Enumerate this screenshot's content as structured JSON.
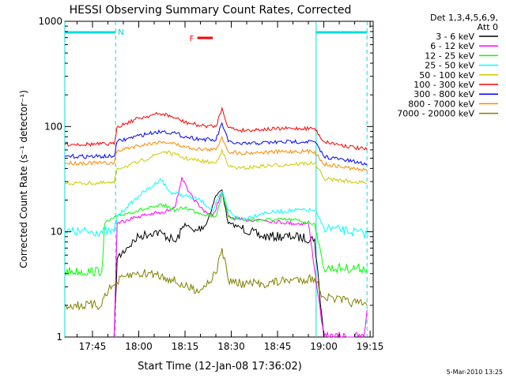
{
  "chart_data": {
    "type": "line",
    "title": "HESSI Observing Summary Count Rates, Corrected",
    "xlabel": "Start Time (12-Jan-08 17:36:02)",
    "ylabel": "Corrected Count Rate (s⁻¹ detector⁻¹)",
    "y_scale": "log",
    "xlim": [
      "17:36:02",
      "19:16:00"
    ],
    "ylim": [
      1,
      1000
    ],
    "x_ticks": [
      "17:45",
      "18:00",
      "18:15",
      "18:30",
      "18:45",
      "19:00",
      "19:15"
    ],
    "y_ticks": [
      "1",
      "10",
      "100",
      "1000"
    ],
    "legend_header": [
      "Det 1,3,4,5,6,9,",
      "Att 0"
    ],
    "legend_position": "right",
    "series": [
      {
        "name": "3 - 6 keV",
        "color": "#000000",
        "x": [
          "17:52",
          "17:53",
          "17:56",
          "18:00",
          "18:05",
          "18:08",
          "18:12",
          "18:15",
          "18:18",
          "18:22",
          "18:25",
          "18:27",
          "18:29",
          "18:33",
          "18:40",
          "18:50",
          "18:57",
          "19:00"
        ],
        "y": [
          0,
          5.5,
          7,
          9,
          10,
          9.5,
          8,
          12,
          10,
          12,
          22,
          25,
          12,
          11,
          9,
          9,
          8.5,
          0
        ]
      },
      {
        "name": "6 - 12 keV",
        "color": "#ff00ff",
        "x": [
          "17:52",
          "17:53",
          "17:56",
          "18:00",
          "18:05",
          "18:08",
          "18:12",
          "18:14",
          "18:16",
          "18:20",
          "18:24",
          "18:27",
          "18:29",
          "18:33",
          "18:40",
          "18:50",
          "18:55",
          "19:00",
          "19:13",
          "19:14"
        ],
        "y": [
          0,
          12,
          13,
          14,
          15,
          15,
          18,
          33,
          24,
          17,
          14,
          24,
          14,
          13,
          13,
          12,
          12,
          0,
          0,
          1.8
        ]
      },
      {
        "name": "12 - 25 keV",
        "color": "#00ff00",
        "x": [
          "17:36",
          "17:48",
          "17:49",
          "17:53",
          "17:56",
          "18:00",
          "18:05",
          "18:08",
          "18:12",
          "18:15",
          "18:20",
          "18:25",
          "18:27",
          "18:29",
          "18:33",
          "18:40",
          "18:50",
          "18:57",
          "19:00",
          "19:14"
        ],
        "y": [
          4.2,
          4.2,
          12,
          14,
          15,
          16,
          17,
          18,
          16,
          17,
          15,
          14,
          23,
          14,
          13,
          13,
          13,
          12,
          4.5,
          4.5
        ]
      },
      {
        "name": "25 - 50 keV",
        "color": "#00ffff",
        "x": [
          "17:36",
          "17:52",
          "17:53",
          "17:56",
          "18:00",
          "18:05",
          "18:07",
          "18:10",
          "18:15",
          "18:20",
          "18:24",
          "18:27",
          "18:29",
          "18:33",
          "18:40",
          "18:50",
          "18:57",
          "19:00",
          "19:14"
        ],
        "y": [
          10,
          10,
          14,
          17,
          22,
          28,
          32,
          24,
          22,
          20,
          16,
          24,
          16,
          13,
          15,
          16,
          16,
          11,
          9.5
        ]
      },
      {
        "name": "50 - 100 keV",
        "color": "#cccc00",
        "x": [
          "17:36",
          "17:52",
          "17:53",
          "17:56",
          "18:00",
          "18:05",
          "18:08",
          "18:12",
          "18:15",
          "18:20",
          "18:25",
          "18:27",
          "18:29",
          "18:33",
          "18:40",
          "18:50",
          "18:57",
          "19:00",
          "19:14"
        ],
        "y": [
          29,
          29,
          40,
          42,
          46,
          53,
          58,
          54,
          50,
          47,
          45,
          60,
          42,
          40,
          42,
          44,
          45,
          32,
          29
        ]
      },
      {
        "name": "100 - 300 keV",
        "color": "#ff0000",
        "x": [
          "17:36",
          "17:52",
          "17:53",
          "17:56",
          "18:00",
          "18:05",
          "18:08",
          "18:12",
          "18:15",
          "18:20",
          "18:25",
          "18:27",
          "18:29",
          "18:33",
          "18:40",
          "18:50",
          "18:57",
          "19:00",
          "19:14"
        ],
        "y": [
          68,
          68,
          100,
          108,
          120,
          130,
          132,
          120,
          110,
          102,
          100,
          150,
          98,
          92,
          94,
          96,
          96,
          72,
          60
        ]
      },
      {
        "name": "300 - 800 keV",
        "color": "#0000ff",
        "x": [
          "17:36",
          "17:52",
          "17:53",
          "17:56",
          "18:00",
          "18:05",
          "18:08",
          "18:12",
          "18:15",
          "18:20",
          "18:25",
          "18:27",
          "18:29",
          "18:33",
          "18:40",
          "18:50",
          "18:57",
          "19:00",
          "19:14"
        ],
        "y": [
          52,
          52,
          72,
          76,
          82,
          88,
          90,
          86,
          80,
          76,
          74,
          108,
          72,
          68,
          70,
          72,
          72,
          52,
          44
        ]
      },
      {
        "name": "800 - 7000 keV",
        "color": "#ff8800",
        "x": [
          "17:36",
          "17:52",
          "17:53",
          "17:56",
          "18:00",
          "18:05",
          "18:08",
          "18:12",
          "18:15",
          "18:20",
          "18:25",
          "18:27",
          "18:29",
          "18:33",
          "18:40",
          "18:50",
          "18:57",
          "19:00",
          "19:14"
        ],
        "y": [
          45,
          45,
          58,
          62,
          66,
          70,
          72,
          68,
          64,
          61,
          60,
          80,
          58,
          56,
          57,
          58,
          58,
          44,
          38
        ]
      },
      {
        "name": "7000 - 20000 keV",
        "color": "#808000",
        "x": [
          "17:36",
          "17:48",
          "17:49",
          "17:53",
          "17:56",
          "18:00",
          "18:05",
          "18:10",
          "18:15",
          "18:20",
          "18:25",
          "18:27",
          "18:29",
          "18:33",
          "18:40",
          "18:50",
          "18:57",
          "19:00",
          "19:14"
        ],
        "y": [
          2,
          2,
          2.6,
          3.3,
          3.8,
          4,
          4,
          3.6,
          3,
          2.8,
          4,
          7,
          3.5,
          3.2,
          3.2,
          3.5,
          3.6,
          2.4,
          2
        ]
      }
    ],
    "annotations": {
      "night_label": "N",
      "flare_label": "F",
      "night_intervals": [
        [
          "17:36:02",
          "17:52:30"
        ],
        [
          "18:57:30",
          "19:14:00"
        ]
      ],
      "flare_interval": [
        "18:19",
        "18:24"
      ],
      "timestamp": "5-Mar-2010 13:25"
    }
  }
}
